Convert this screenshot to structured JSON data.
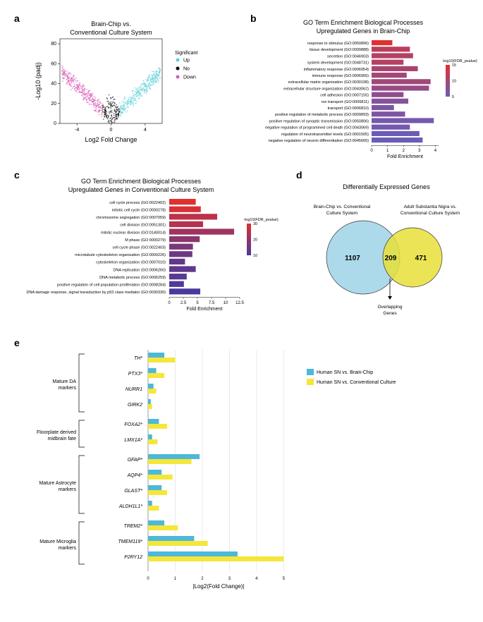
{
  "panelA": {
    "label": "a",
    "title_line1": "Brain-Chip vs.",
    "title_line2": "Conventional Culture System",
    "xlabel": "Log2 Fold Change",
    "ylabel": "-Log10 (padj)",
    "xlim": [
      -6,
      6
    ],
    "ylim": [
      0,
      85
    ],
    "xticks": [
      -4,
      0,
      4
    ],
    "yticks": [
      0,
      20,
      40,
      60,
      80
    ],
    "legend_title": "Significant",
    "legend_items": [
      {
        "label": "Up",
        "color": "#5dd0d6"
      },
      {
        "label": "No",
        "color": "#000000"
      },
      {
        "label": "Down",
        "color": "#d85ab5"
      }
    ],
    "colors": {
      "up": "#5dd0d6",
      "no": "#000000",
      "down": "#d85ab5"
    },
    "title_fontsize": 9,
    "axis_fontsize": 9,
    "tick_fontsize": 7,
    "legend_fontsize": 7
  },
  "panelB": {
    "label": "b",
    "title_line1": "GO Term Enrichment Biological Processes",
    "title_line2": "Upregulated Genes in Brain-Chip",
    "xlabel": "Fold Enrichment",
    "xlim": [
      0,
      4.2
    ],
    "xticks": [
      0,
      1,
      2,
      3,
      4
    ],
    "color_min": "#6b5cb8",
    "color_max": "#e03030",
    "legend_label": "-log10(FDR_pvalue)",
    "legend_ticks": [
      5,
      10,
      15
    ],
    "bars": [
      {
        "label": "response to stimulus (GO:0050896)",
        "val": 1.3,
        "p": 16
      },
      {
        "label": "tissue development (GO:0009888)",
        "val": 2.4,
        "p": 12
      },
      {
        "label": "secretion (GO:0046903)",
        "val": 2.6,
        "p": 11
      },
      {
        "label": "system development (GO:0048731)",
        "val": 2.0,
        "p": 11
      },
      {
        "label": "inflammatory response (GO:0006954)",
        "val": 2.9,
        "p": 10
      },
      {
        "label": "immune response (GO:0006955)",
        "val": 2.2,
        "p": 9
      },
      {
        "label": "extracellular matrix organization (GO:0030198)",
        "val": 3.7,
        "p": 9
      },
      {
        "label": "extracellular structure organization (GO:0043062)",
        "val": 3.6,
        "p": 8
      },
      {
        "label": "cell adhesion (GO:0007155)",
        "val": 2.0,
        "p": 7
      },
      {
        "label": "ion transport (GO:0006811)",
        "val": 2.3,
        "p": 6
      },
      {
        "label": "transport (GO:0006810)",
        "val": 1.4,
        "p": 5
      },
      {
        "label": "positive regulation of metabolic process (GO:0009893)",
        "val": 2.1,
        "p": 5
      },
      {
        "label": "positive regulation of synaptic transmission (GO:0050806)",
        "val": 3.9,
        "p": 4
      },
      {
        "label": "negative regulation of programmed cell death (GO:0043069)",
        "val": 2.4,
        "p": 4
      },
      {
        "label": "regulation of neurotransmitter levels (GO:0001505)",
        "val": 3.0,
        "p": 3
      },
      {
        "label": "negative regulation of neuron differentiation (GO:0045665)",
        "val": 3.2,
        "p": 3
      }
    ],
    "title_fontsize": 9,
    "label_fontsize": 5.5,
    "tick_fontsize": 6
  },
  "panelC": {
    "label": "c",
    "title_line1": "GO Term Enrichment Biological Processes",
    "title_line2": "Upregulated Genes in Conventional Culture System",
    "xlabel": "Fold Enrichment",
    "xlim": [
      0,
      12.5
    ],
    "xticks": [
      0,
      2.5,
      5.0,
      7.5,
      10.0,
      12.5
    ],
    "color_min": "#4a3a9c",
    "color_max": "#e03030",
    "legend_label": "-log10(FDR_pvalue)",
    "legend_ticks": [
      10,
      20,
      30
    ],
    "bars": [
      {
        "label": "cell cycle process (GO:0022402)",
        "val": 4.7,
        "p": 35
      },
      {
        "label": "mitotic cell cycle (GO:0000278)",
        "val": 5.6,
        "p": 33
      },
      {
        "label": "chromosome segregation (GO:0007059)",
        "val": 8.5,
        "p": 28
      },
      {
        "label": "cell division (GO:0051301)",
        "val": 6.0,
        "p": 26
      },
      {
        "label": "mitotic nuclear division (GO:0140014)",
        "val": 11.5,
        "p": 22
      },
      {
        "label": "M phase (GO:0000279)",
        "val": 5.4,
        "p": 18
      },
      {
        "label": "cell cycle phase (GO:0022403)",
        "val": 4.2,
        "p": 15
      },
      {
        "label": "microtubule cytoskeleton organization (GO:0000226)",
        "val": 4.1,
        "p": 12
      },
      {
        "label": "cytoskeleton organization (GO:0007010)",
        "val": 2.8,
        "p": 10
      },
      {
        "label": "DNA replication (GO:0006260)",
        "val": 4.7,
        "p": 9
      },
      {
        "label": "DNA metabolic process (GO:0006259)",
        "val": 3.1,
        "p": 8
      },
      {
        "label": "positive regulation of cell population proliferation (GO:0008284)",
        "val": 2.6,
        "p": 6
      },
      {
        "label": "DNA damage response, signal transduction by p53 class mediator (GO:0030330)",
        "val": 5.5,
        "p": 5
      }
    ],
    "title_fontsize": 9,
    "label_fontsize": 5.5,
    "tick_fontsize": 6
  },
  "panelD": {
    "label": "d",
    "title": "Differentially Expressed Genes",
    "left_label_line1": "Brain-Chip vs. Conventional",
    "left_label_line2": "Culture System",
    "right_label_line1": "Adult Substantia Nigra vs.",
    "right_label_line2": "Conventional Culture System",
    "left_count": "1107",
    "overlap_count": "209",
    "right_count": "471",
    "overlap_label_line1": "Overlapping",
    "overlap_label_line2": "Genes",
    "left_color": "#9fd4e8",
    "right_color": "#e8df3a",
    "title_fontsize": 9,
    "label_fontsize": 6.5,
    "count_fontsize": 10
  },
  "panelE": {
    "label": "e",
    "xlabel": "|Log2(Fold Change)|",
    "xlim": [
      0,
      5.2
    ],
    "xticks": [
      0,
      1,
      2,
      3,
      4,
      5
    ],
    "legend": [
      {
        "label": "Human SN vs. Brain-Chip",
        "color": "#4db8d8"
      },
      {
        "label": "Human SN vs. Conventional Culture",
        "color": "#f5e63a"
      }
    ],
    "groups": [
      {
        "name": "Mature DA\nmarkers",
        "genes": [
          {
            "name": "TH*",
            "bc": 0.6,
            "cc": 1.0
          },
          {
            "name": "PTX3*",
            "bc": 0.3,
            "cc": 0.6
          },
          {
            "name": "NURR1",
            "bc": 0.2,
            "cc": 0.3
          },
          {
            "name": "GIRK2",
            "bc": 0.1,
            "cc": 0.15
          }
        ]
      },
      {
        "name": "Floorplate derived\nmidbrain fate",
        "genes": [
          {
            "name": "FOXA2*",
            "bc": 0.4,
            "cc": 0.7
          },
          {
            "name": "LMX1A*",
            "bc": 0.15,
            "cc": 0.35
          }
        ]
      },
      {
        "name": "Mature Astrocyte\nmarkers",
        "genes": [
          {
            "name": "GFAP*",
            "bc": 1.9,
            "cc": 1.6
          },
          {
            "name": "AQP4*",
            "bc": 0.5,
            "cc": 0.9
          },
          {
            "name": "GLAST*",
            "bc": 0.5,
            "cc": 0.7
          },
          {
            "name": "ALDH1L1*",
            "bc": 0.15,
            "cc": 0.4
          }
        ]
      },
      {
        "name": "Mature Microglia\nmarkers",
        "genes": [
          {
            "name": "TREM2*",
            "bc": 0.6,
            "cc": 1.1
          },
          {
            "name": "TMEM119*",
            "bc": 1.7,
            "cc": 2.2
          },
          {
            "name": "P2RY12",
            "bc": 3.3,
            "cc": 5.0
          }
        ]
      }
    ],
    "colors": {
      "bc": "#4db8d8",
      "cc": "#f5e63a"
    },
    "label_fontsize": 7,
    "gene_fontsize": 7,
    "tick_fontsize": 6
  }
}
